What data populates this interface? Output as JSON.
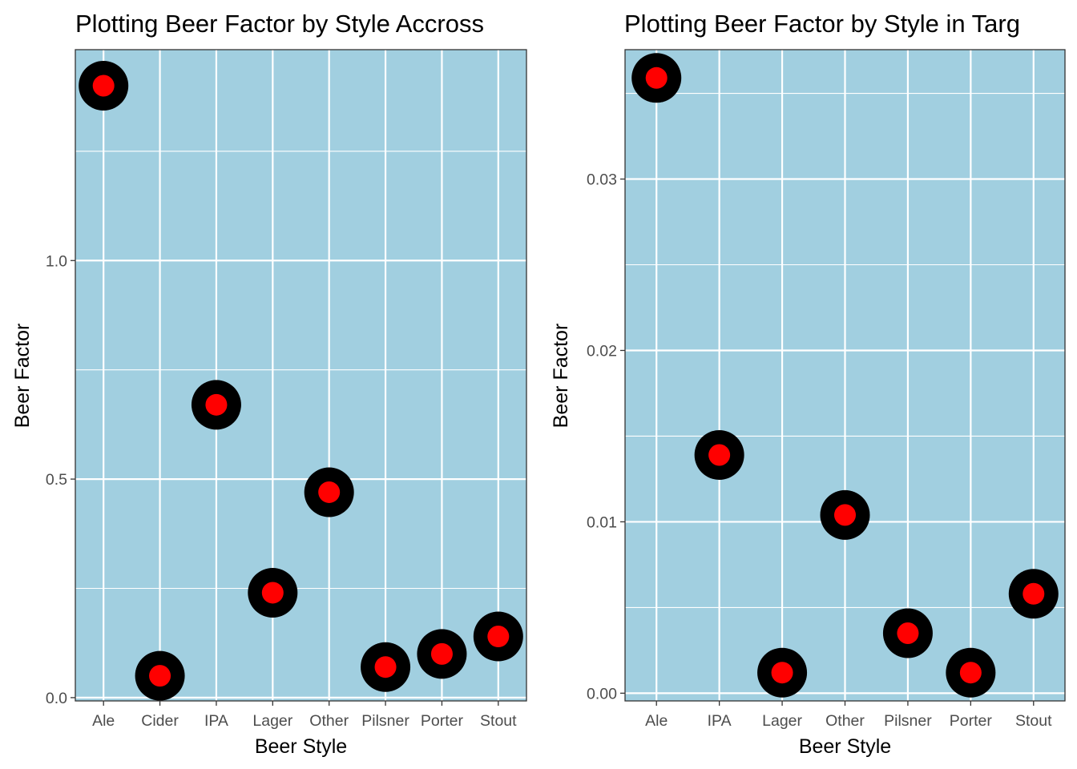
{
  "colors": {
    "panel_bg": "#a1cfe0",
    "grid": "#ffffff",
    "panel_border": "#333333",
    "tick_text": "#4d4d4d",
    "point_outer": "#000000",
    "point_inner": "#ff0000"
  },
  "chart_data": [
    {
      "type": "scatter",
      "title": "Plotting Beer Factor by Style Accross",
      "xlabel": "Beer Style",
      "ylabel": "Beer Factor",
      "categories": [
        "Ale",
        "Cider",
        "IPA",
        "Lager",
        "Other",
        "Pilsner",
        "Porter",
        "Stout"
      ],
      "values": [
        1.4,
        0.05,
        0.67,
        0.24,
        0.47,
        0.07,
        0.1,
        0.14
      ],
      "yticks": [
        0.0,
        0.5,
        1.0
      ],
      "ytick_labels": [
        "0.0",
        "0.5",
        "1.0"
      ],
      "ylim": [
        -0.0075,
        1.4825
      ],
      "grid": true,
      "legend": "none"
    },
    {
      "type": "scatter",
      "title": "Plotting Beer Factor by Style in Targ",
      "xlabel": "Beer Style",
      "ylabel": "Beer Factor",
      "categories": [
        "Ale",
        "IPA",
        "Lager",
        "Other",
        "Pilsner",
        "Porter",
        "Stout"
      ],
      "values": [
        0.0359,
        0.0139,
        0.0012,
        0.0104,
        0.0035,
        0.0012,
        0.0058
      ],
      "yticks": [
        0.0,
        0.01,
        0.02,
        0.03
      ],
      "ytick_labels": [
        "0.00",
        "0.01",
        "0.02",
        "0.03"
      ],
      "ylim": [
        -0.00045,
        0.03755
      ],
      "grid": true,
      "legend": "none"
    }
  ]
}
